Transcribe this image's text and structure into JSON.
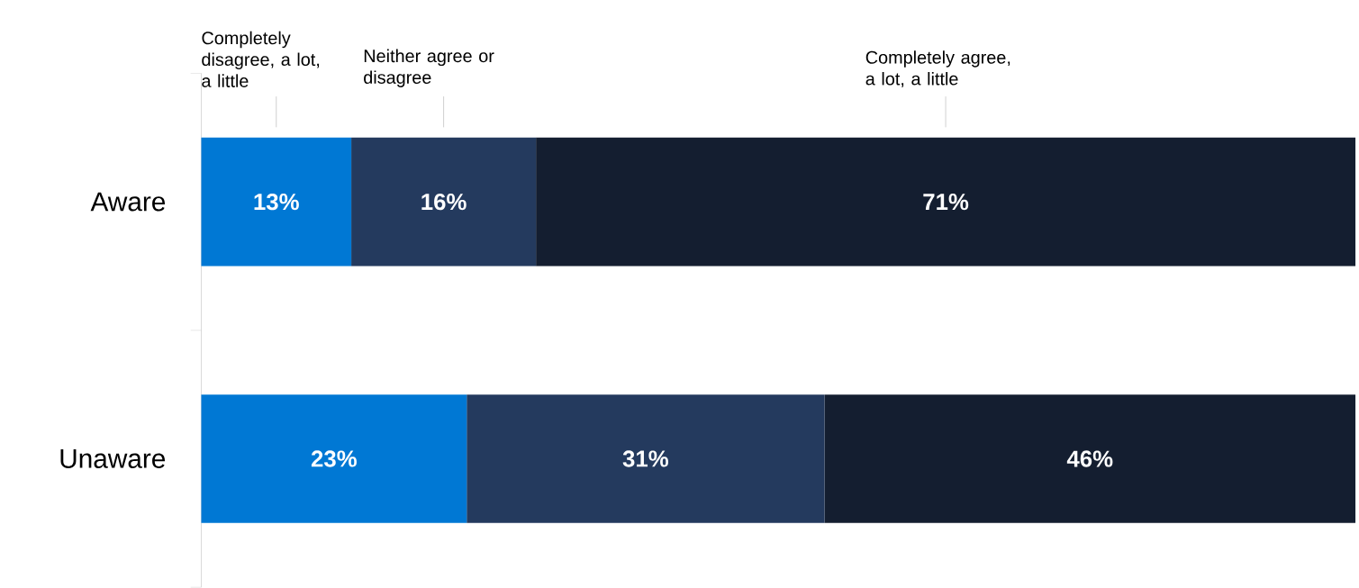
{
  "chart_data": {
    "type": "bar",
    "orientation": "horizontal",
    "stacked": true,
    "categories": [
      "Aware",
      "Unaware"
    ],
    "xlim": [
      0,
      100
    ],
    "series": [
      {
        "name": "Completely disagree, a lot, a little",
        "color": "#0078d4",
        "values": [
          13,
          23
        ],
        "value_labels": [
          "13%",
          "23%"
        ]
      },
      {
        "name": "Neither agree or disagree",
        "color": "#243a5e",
        "values": [
          16,
          31
        ],
        "value_labels": [
          "16%",
          "31%"
        ]
      },
      {
        "name": "Completely agree, a lot, a little",
        "color": "#141e30",
        "values": [
          71,
          46
        ],
        "value_labels": [
          "71%",
          "46%"
        ]
      }
    ]
  }
}
